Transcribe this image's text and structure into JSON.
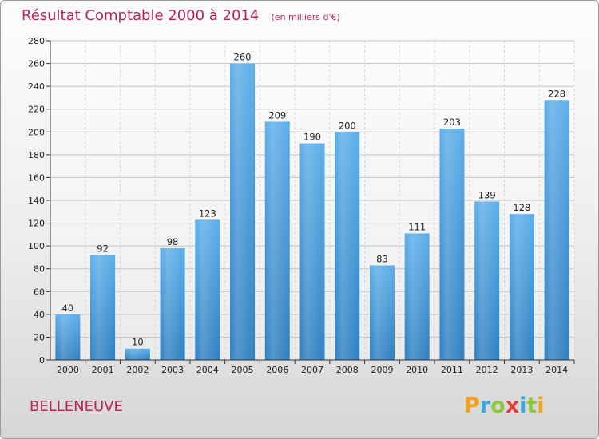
{
  "chart_data": {
    "type": "bar",
    "title": "Résultat Comptable 2000 à 2014",
    "subtitle": "(en milliers d'€)",
    "categories": [
      "2000",
      "2001",
      "2002",
      "2003",
      "2004",
      "2005",
      "2006",
      "2007",
      "2008",
      "2009",
      "2010",
      "2011",
      "2012",
      "2013",
      "2014"
    ],
    "values": [
      40,
      92,
      10,
      98,
      123,
      260,
      209,
      190,
      200,
      83,
      111,
      203,
      139,
      128,
      228
    ],
    "xlabel": "",
    "ylabel": "",
    "ylim": [
      0,
      280
    ],
    "yticks": [
      0,
      20,
      40,
      60,
      80,
      100,
      120,
      140,
      160,
      180,
      200,
      220,
      240,
      260,
      280
    ],
    "grid": true,
    "bar_color": "#4d9fe0"
  },
  "footer": {
    "commune": "BELLENEUVE",
    "brand_letters": [
      {
        "ch": "P",
        "color": "#f4a11d"
      },
      {
        "ch": "r",
        "color": "#37a9e0"
      },
      {
        "ch": "o",
        "color": "#8ec63f"
      },
      {
        "ch": "x",
        "color": "#e2403b"
      },
      {
        "ch": "i",
        "color": "#37a9e0"
      },
      {
        "ch": "t",
        "color": "#8ec63f"
      },
      {
        "ch": "i",
        "color": "#f4a11d"
      }
    ]
  }
}
